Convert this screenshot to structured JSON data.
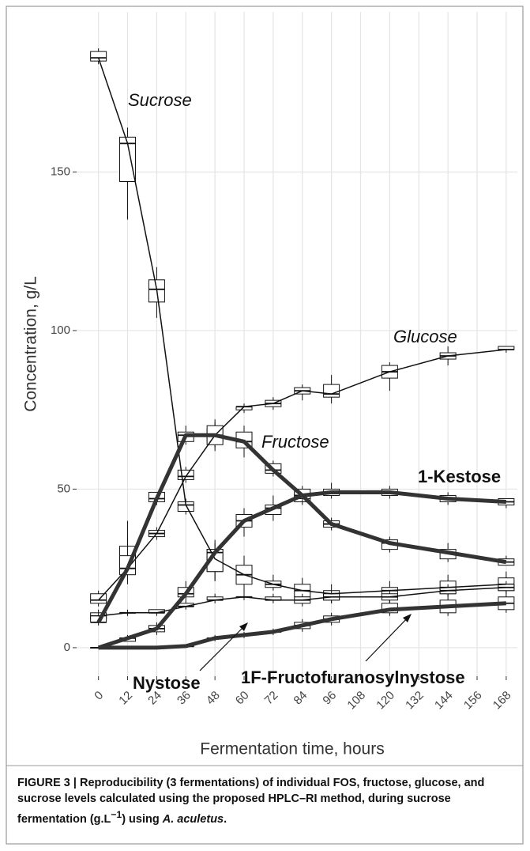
{
  "chart_data": {
    "type": "boxline",
    "x_label": "Fermentation time, hours",
    "y_label": "Concentration, g/L",
    "x": [
      0,
      12,
      24,
      36,
      48,
      60,
      72,
      84,
      96,
      120,
      144,
      168
    ],
    "xlim": [
      -9,
      172.6
    ],
    "xticks": [
      0,
      12,
      24,
      36,
      48,
      60,
      72,
      84,
      96,
      108,
      120,
      132,
      144,
      156,
      168
    ],
    "ylim": [
      -9,
      200.5
    ],
    "yticks": [
      0,
      50,
      100,
      150
    ],
    "grid": true,
    "series": [
      {
        "name": "Sucrose",
        "color": "#111111",
        "line_width": 1.5,
        "label_style": "italic",
        "values": [
          186,
          159,
          113,
          45,
          28,
          23,
          20,
          18,
          17,
          18,
          19,
          20
        ],
        "q1": [
          185,
          147,
          109,
          43,
          24,
          20,
          19,
          16,
          15,
          16,
          17,
          18
        ],
        "q3": [
          188,
          161,
          116,
          46,
          31,
          26,
          21,
          20,
          18,
          19,
          21,
          22
        ],
        "low": [
          184,
          135,
          104,
          42,
          21,
          17,
          18,
          15,
          14,
          14,
          16,
          17
        ],
        "high": [
          189,
          164,
          120,
          47,
          33,
          29,
          23,
          22,
          20,
          21,
          23,
          24
        ]
      },
      {
        "name": "Glucose",
        "color": "#111111",
        "line_width": 1.5,
        "label_style": "italic",
        "values": [
          15,
          25,
          36,
          54,
          67,
          76,
          77,
          81,
          80,
          87,
          92,
          94
        ],
        "q1": [
          14,
          24,
          35,
          53,
          65,
          75,
          76,
          80,
          79,
          85,
          91,
          94
        ],
        "q3": [
          17,
          32,
          37,
          56,
          69,
          76,
          78,
          82,
          83,
          89,
          93,
          95
        ],
        "low": [
          13,
          22,
          34,
          52,
          63,
          74,
          75,
          78,
          77,
          81,
          89,
          93
        ],
        "high": [
          18,
          40,
          38,
          57,
          71,
          77,
          79,
          83,
          86,
          90,
          95,
          95
        ]
      },
      {
        "name": "Fructose",
        "color": "#111111",
        "line_width": 1.5,
        "label_style": "italic",
        "values": [
          10,
          11,
          11,
          13,
          15,
          16,
          15,
          15,
          16,
          16,
          18,
          19
        ],
        "q1": [
          9,
          11,
          11,
          13,
          15,
          16,
          15,
          14,
          15,
          15,
          17,
          18
        ],
        "q3": [
          11,
          11,
          12,
          14,
          16,
          16,
          16,
          16,
          17,
          17,
          19,
          20
        ],
        "low": [
          8,
          10,
          10,
          12,
          14,
          15,
          14,
          13,
          14,
          14,
          16,
          17
        ],
        "high": [
          12,
          12,
          12,
          15,
          17,
          17,
          17,
          17,
          18,
          18,
          20,
          21
        ]
      },
      {
        "name": "1-Kestose",
        "color": "#333333",
        "line_width": 5,
        "label_style": "bold",
        "values": [
          8,
          25,
          47,
          67,
          67,
          65,
          56,
          48,
          39,
          33,
          30,
          27
        ],
        "q1": [
          8,
          23,
          46,
          65,
          64,
          63,
          55,
          46,
          38,
          31,
          28,
          26
        ],
        "q3": [
          10,
          29,
          49,
          68,
          70,
          68,
          58,
          49,
          40,
          34,
          31,
          28
        ],
        "low": [
          7,
          20,
          45,
          64,
          62,
          60,
          54,
          45,
          37,
          30,
          27,
          26
        ],
        "high": [
          11,
          35,
          49,
          70,
          72,
          70,
          59,
          50,
          41,
          35,
          33,
          29
        ]
      },
      {
        "name": "Nystose",
        "color": "#333333",
        "line_width": 5,
        "label_style": "bold",
        "values": [
          0,
          3,
          6,
          17,
          30,
          40,
          44,
          48,
          49,
          49,
          47,
          46
        ],
        "q1": [
          0,
          2,
          5,
          16,
          24,
          38,
          42,
          47,
          48,
          48,
          46,
          45
        ],
        "q3": [
          0,
          3,
          7,
          19,
          31,
          42,
          45,
          50,
          50,
          50,
          48,
          47
        ],
        "low": [
          0,
          2,
          4,
          15,
          21,
          35,
          40,
          46,
          47,
          47,
          45,
          44
        ],
        "high": [
          0,
          4,
          8,
          21,
          34,
          44,
          48,
          51,
          52,
          51,
          49,
          47
        ]
      },
      {
        "name": "1F-Fructofuranosylnystose",
        "color": "#333333",
        "line_width": 5,
        "label_style": "bold",
        "values": [
          0,
          0,
          0,
          0.5,
          3,
          4,
          5,
          7,
          9,
          12,
          13,
          14
        ],
        "q1": [
          0,
          0,
          0,
          0.3,
          3,
          4,
          5,
          6,
          8,
          11,
          11,
          12
        ],
        "q3": [
          0,
          0,
          0,
          0.7,
          3,
          4,
          5,
          8,
          10,
          14,
          15,
          16
        ],
        "low": [
          0,
          0,
          0,
          0,
          2,
          3,
          4,
          5,
          7,
          10,
          10,
          11
        ],
        "high": [
          0,
          0,
          0,
          1,
          4,
          5,
          6,
          9,
          11,
          15,
          16,
          17
        ]
      }
    ],
    "caption": {
      "lead": "FIGURE 3 | Reproducibility (3 fermentations) of individual FOS, fructose, glucose, and sucrose levels calculated using the proposed HPLC–RI method, during sucrose fermentation (g.L",
      "sup": "−1",
      "mid": ") using ",
      "italic": "A. aculetus",
      "end": "."
    }
  }
}
